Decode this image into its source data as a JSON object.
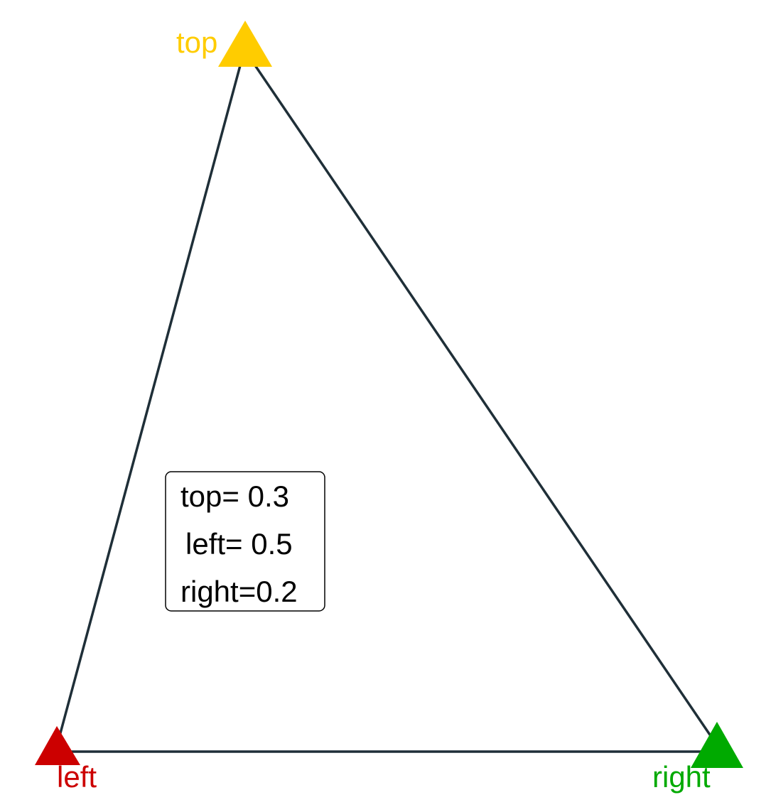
{
  "vertices": {
    "top": {
      "label": "top",
      "color": "#FFCC00",
      "marker": "triangle-marker-icon"
    },
    "left": {
      "label": "left",
      "color": "#CC0000",
      "marker": "triangle-marker-icon"
    },
    "right": {
      "label": "right",
      "color": "#00AA00",
      "marker": "triangle-marker-icon"
    }
  },
  "edge_color": "#1F2F38",
  "info_box": {
    "line1": "top= 0.3",
    "line2": "left= 0.5",
    "line3": "right=0.2"
  }
}
